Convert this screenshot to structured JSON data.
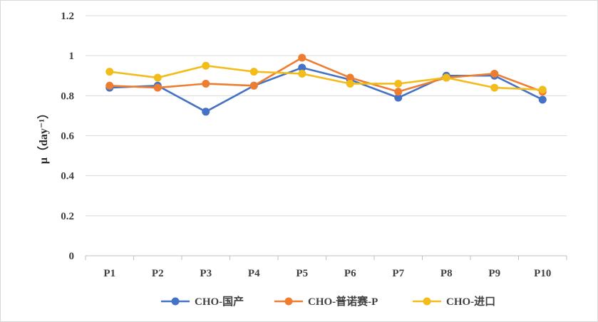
{
  "chart_data": {
    "type": "line",
    "title": "",
    "xlabel": "",
    "ylabel": "μ（day⁻¹）",
    "ylim": [
      0,
      1.2
    ],
    "ytick_step": 0.2,
    "yticks": [
      "0",
      "0.2",
      "0.4",
      "0.6",
      "0.8",
      "1",
      "1.2"
    ],
    "categories": [
      "P1",
      "P2",
      "P3",
      "P4",
      "P5",
      "P6",
      "P7",
      "P8",
      "P9",
      "P10"
    ],
    "grid": "horizontal",
    "legend_position": "bottom",
    "series": [
      {
        "name": "CHO-国产",
        "color": "#4472C4",
        "values": [
          0.84,
          0.85,
          0.72,
          0.85,
          0.94,
          0.88,
          0.79,
          0.9,
          0.9,
          0.78
        ]
      },
      {
        "name": "CHO-普诺赛-P",
        "color": "#ED7D31",
        "values": [
          0.85,
          0.84,
          0.86,
          0.85,
          0.99,
          0.89,
          0.82,
          0.89,
          0.91,
          0.82
        ]
      },
      {
        "name": "CHO-进口",
        "color": "#F2BC1B",
        "values": [
          0.92,
          0.89,
          0.95,
          0.92,
          0.91,
          0.86,
          0.86,
          0.89,
          0.84,
          0.83
        ]
      }
    ]
  }
}
